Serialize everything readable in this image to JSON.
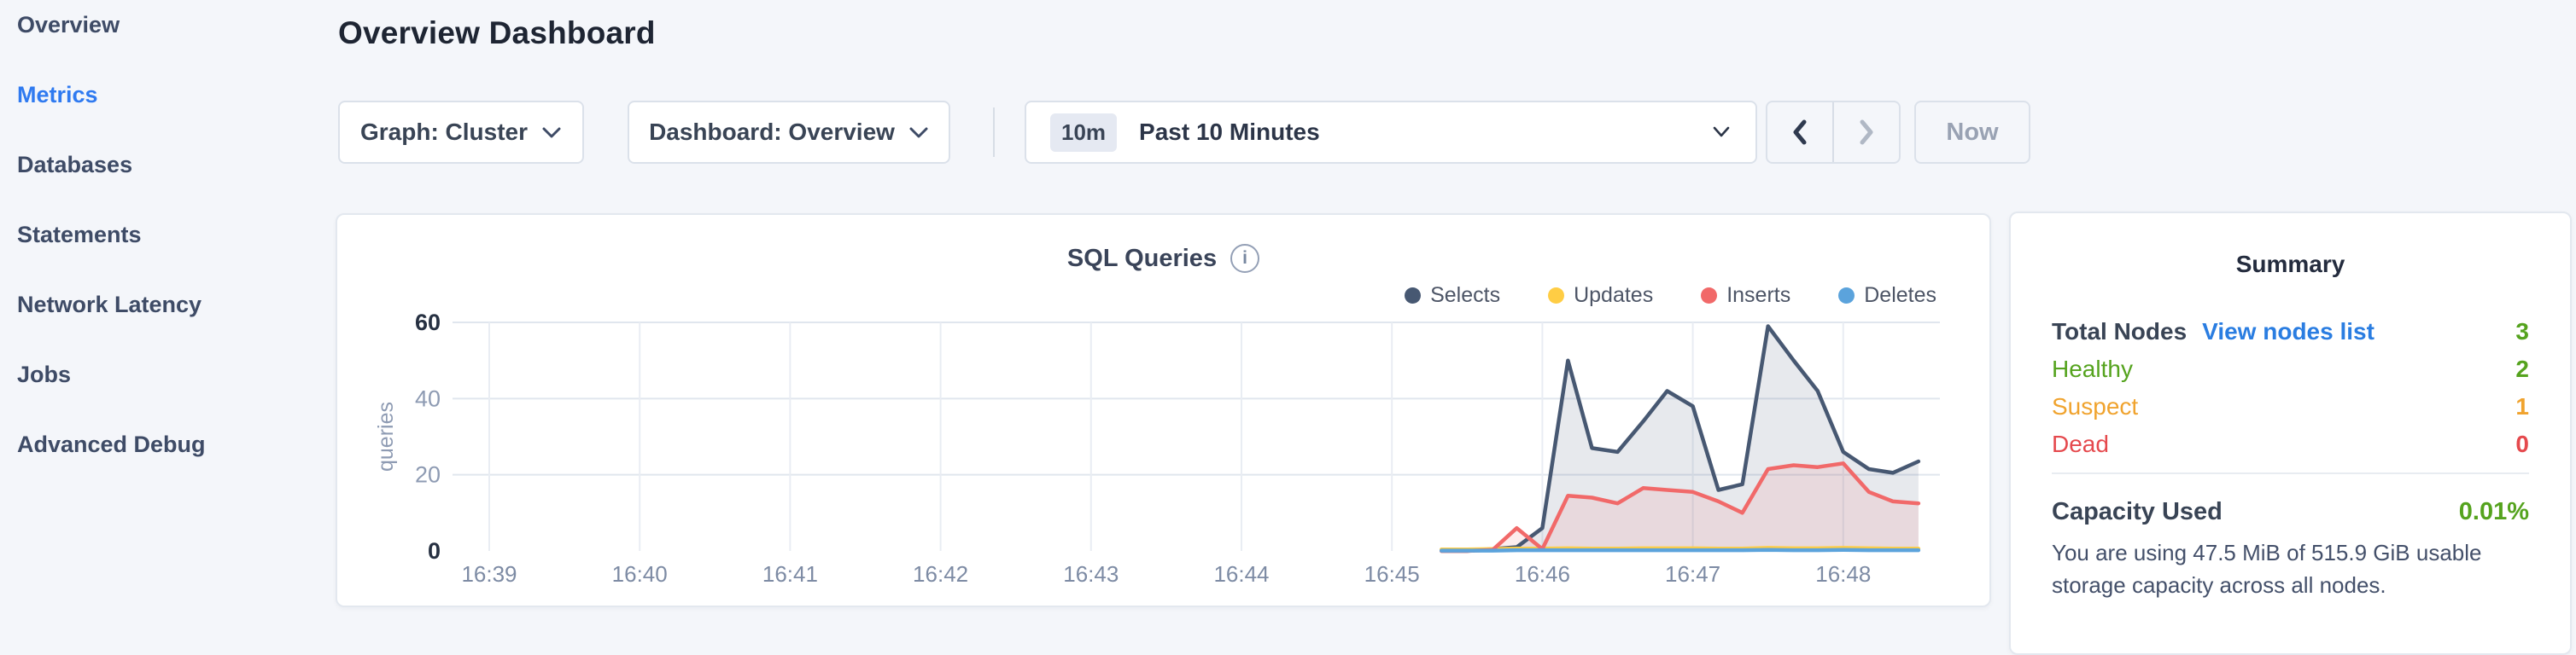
{
  "sidebar": {
    "items": [
      {
        "label": "Overview",
        "active": false
      },
      {
        "label": "Metrics",
        "active": true
      },
      {
        "label": "Databases",
        "active": false
      },
      {
        "label": "Statements",
        "active": false
      },
      {
        "label": "Network Latency",
        "active": false
      },
      {
        "label": "Jobs",
        "active": false
      },
      {
        "label": "Advanced Debug",
        "active": false
      }
    ]
  },
  "header": {
    "title": "Overview Dashboard"
  },
  "toolbar": {
    "graph_dropdown": "Graph: Cluster",
    "dashboard_dropdown": "Dashboard: Overview",
    "time_badge": "10m",
    "time_label": "Past 10 Minutes",
    "now_label": "Now"
  },
  "chart_data": {
    "type": "area",
    "title": "SQL Queries",
    "ylabel": "queries",
    "ylim": [
      0,
      60
    ],
    "yticks": [
      0,
      20,
      40,
      60
    ],
    "xticks": [
      "16:39",
      "16:40",
      "16:41",
      "16:42",
      "16:43",
      "16:44",
      "16:45",
      "16:46",
      "16:47",
      "16:48"
    ],
    "x_hour": 16,
    "x_minutes": [
      45.33,
      45.5,
      45.67,
      45.83,
      46.0,
      46.17,
      46.33,
      46.5,
      46.67,
      46.83,
      47.0,
      47.17,
      47.33,
      47.5,
      47.67,
      47.83,
      48.0,
      48.17,
      48.33,
      48.5
    ],
    "grid": true,
    "legend_position": "top-right",
    "series": [
      {
        "name": "Selects",
        "color": "#475872",
        "fill": "rgba(71,88,114,0.13)",
        "values": [
          0,
          0,
          0.5,
          1,
          6,
          50,
          27,
          26,
          34,
          42,
          38,
          16,
          17.5,
          59,
          50,
          42,
          26,
          21.5,
          20.5,
          23.5
        ]
      },
      {
        "name": "Updates",
        "color": "#ffcd44",
        "fill": "none",
        "values": [
          0.4,
          0.4,
          0.5,
          0.6,
          0.6,
          0.7,
          0.6,
          0.6,
          0.7,
          0.7,
          0.7,
          0.6,
          0.6,
          0.8,
          0.7,
          0.7,
          0.8,
          0.7,
          0.6,
          0.6
        ]
      },
      {
        "name": "Inserts",
        "color": "#f16969",
        "fill": "rgba(241,105,105,0.12)",
        "values": [
          0,
          0,
          0.3,
          6,
          0.5,
          14.5,
          14,
          12.5,
          16.5,
          16,
          15.5,
          13,
          10,
          21.5,
          22.5,
          22,
          23,
          15.5,
          13,
          12.5
        ]
      },
      {
        "name": "Deletes",
        "color": "#5ba3dc",
        "fill": "none",
        "values": [
          0.1,
          0.1,
          0.1,
          0.2,
          0.2,
          0.2,
          0.2,
          0.2,
          0.2,
          0.2,
          0.2,
          0.2,
          0.2,
          0.3,
          0.2,
          0.2,
          0.3,
          0.2,
          0.2,
          0.2
        ]
      }
    ]
  },
  "summary": {
    "title": "Summary",
    "rows": [
      {
        "label": "Total Nodes",
        "bold": true,
        "link": "View nodes list",
        "value": "3",
        "color": "green"
      },
      {
        "label": "Healthy",
        "bold": false,
        "value": "2",
        "color": "green"
      },
      {
        "label": "Suspect",
        "bold": false,
        "value": "1",
        "color": "orange"
      },
      {
        "label": "Dead",
        "bold": false,
        "value": "0",
        "color": "red"
      }
    ],
    "capacity_label": "Capacity Used",
    "capacity_value": "0.01%",
    "capacity_color": "green",
    "capacity_note": "You are using 47.5 MiB of 515.9 GiB usable storage capacity across all nodes."
  },
  "colors": {
    "green": "#55a31e",
    "orange": "#f0a32e",
    "red": "#e5494d",
    "link": "#2a7de1",
    "nav_active": "#2f7af0"
  }
}
